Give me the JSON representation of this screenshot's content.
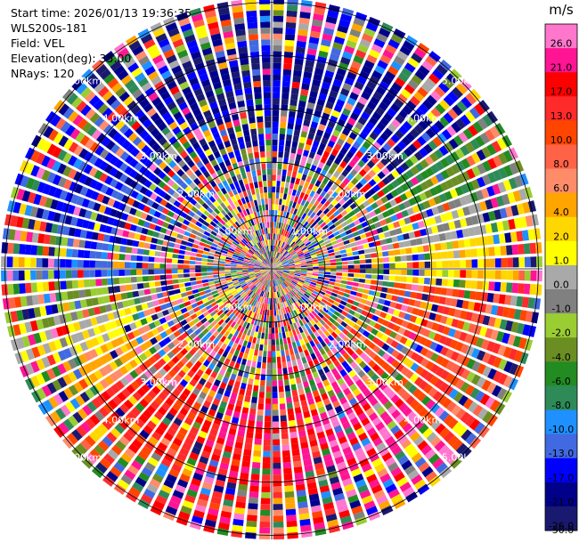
{
  "header": {
    "start_time": "Start time: 2026/01/13 19:36:35",
    "site": "WLS200s-181",
    "field": "Field: VEL",
    "elevation": "Elevation(deg): 35.00",
    "nrays": "NRays: 120"
  },
  "chart_data": {
    "type": "heatmap",
    "projection": "polar-ppi",
    "n_rays": 120,
    "max_range_km": 5.0,
    "range_ring_labels": [
      "1.00km",
      "2.00km",
      "3.00km",
      "4.00km",
      "5.00km"
    ],
    "colorbar": {
      "unit": "m/s",
      "ticks": [
        "26.0",
        "21.0",
        "17.0",
        "13.0",
        "10.0",
        "8.0",
        "6.0",
        "4.0",
        "2.0",
        "1.0",
        "0.0",
        "-1.0",
        "-2.0",
        "-4.0",
        "-6.0",
        "-8.0",
        "-10.0",
        "-13.0",
        "-17.0",
        "-21.0",
        "-26.0",
        "-30.0"
      ],
      "colors": [
        "#ff77cc",
        "#ff1493",
        "#ff0000",
        "#ff2a2a",
        "#ff4500",
        "#ff6347",
        "#ff8c69",
        "#ffa500",
        "#ffd700",
        "#ffff00",
        "#a9a9a9",
        "#808080",
        "#9acd32",
        "#6b8e23",
        "#228b22",
        "#2e8b57",
        "#1e90ff",
        "#4169e1",
        "#0000ff",
        "#00008b",
        "#191970"
      ]
    }
  }
}
